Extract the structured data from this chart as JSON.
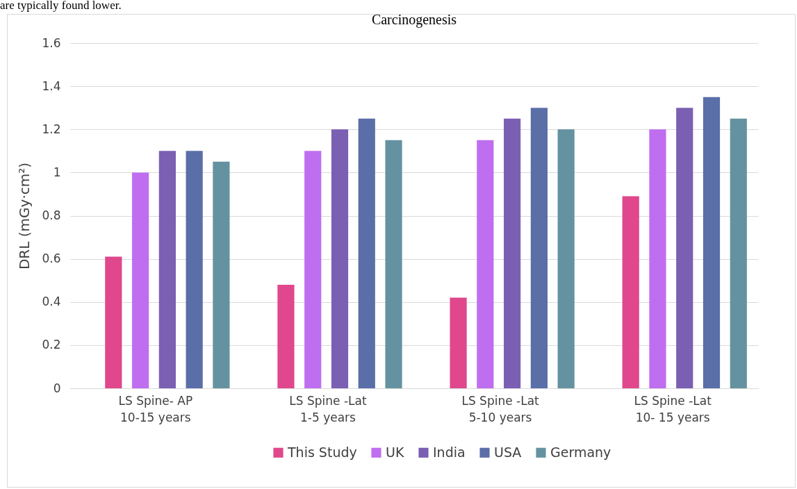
{
  "chart_data": {
    "type": "bar",
    "title": "Carcinogenesis",
    "ylabel": "DRL (mGy·cm²)",
    "annotations": [
      "are typically found lower."
    ],
    "categories": [
      "LS Spine- AP\n10-15 years",
      "LS Spine -Lat\n1-5 years",
      "LS Spine -Lat\n5-10 years",
      "LS Spine -Lat\n10- 15 years"
    ],
    "series": [
      {
        "name": "This Study",
        "color": "#e0478c",
        "values": [
          0.61,
          0.48,
          0.42,
          0.89
        ]
      },
      {
        "name": "UK",
        "color": "#bf6ef0",
        "values": [
          1.0,
          1.1,
          1.15,
          1.2
        ]
      },
      {
        "name": "India",
        "color": "#7b5fb3",
        "values": [
          1.1,
          1.2,
          1.25,
          1.3
        ]
      },
      {
        "name": "USA",
        "color": "#5a6ea8",
        "values": [
          1.1,
          1.25,
          1.3,
          1.35
        ]
      },
      {
        "name": "Germany",
        "color": "#6492a0",
        "values": [
          1.05,
          1.15,
          1.2,
          1.25
        ]
      }
    ],
    "ylim": [
      0,
      1.6
    ],
    "yticks": [
      {
        "value": 0,
        "label": "0"
      },
      0.2,
      0.4,
      0.6,
      0.8,
      {
        "value": 1,
        "label": "1"
      },
      1.2,
      1.4,
      1.6
    ],
    "grid": "y",
    "legend": "bottom"
  }
}
